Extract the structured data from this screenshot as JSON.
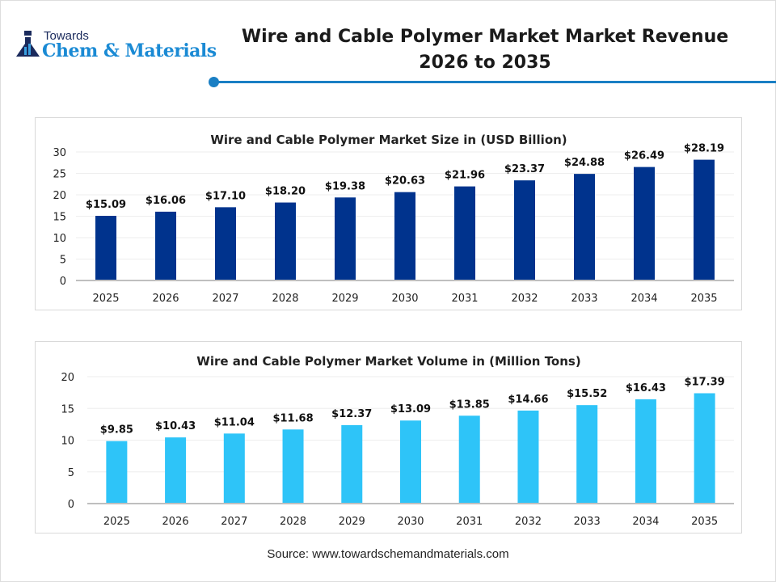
{
  "header": {
    "logo": {
      "line1": "Towards",
      "line2": "Chem & Materials"
    },
    "title_line1": "Wire and Cable Polymer Market Market Revenue",
    "title_line2": "2026 to 2035",
    "accent_color": "#1a7fc4"
  },
  "chart_data": [
    {
      "type": "bar",
      "title": "Wire and Cable Polymer Market Size in (USD Billion)",
      "categories": [
        "2025",
        "2026",
        "2027",
        "2028",
        "2029",
        "2030",
        "2031",
        "2032",
        "2033",
        "2034",
        "2035"
      ],
      "values": [
        15.09,
        16.06,
        17.1,
        18.2,
        19.38,
        20.63,
        21.96,
        23.37,
        24.88,
        26.49,
        28.19
      ],
      "data_labels": [
        "$15.09",
        "$16.06",
        "$17.10",
        "$18.20",
        "$19.38",
        "$20.63",
        "$21.96",
        "$23.37",
        "$24.88",
        "$26.49",
        "$28.19"
      ],
      "ylim": [
        0,
        30
      ],
      "yticks": [
        0,
        5,
        10,
        15,
        20,
        25,
        30
      ],
      "grid": true,
      "color": "#00338d"
    },
    {
      "type": "bar",
      "title": "Wire and Cable Polymer Market Volume in (Million Tons)",
      "categories": [
        "2025",
        "2026",
        "2027",
        "2028",
        "2029",
        "2030",
        "2031",
        "2032",
        "2033",
        "2034",
        "2035"
      ],
      "values": [
        9.85,
        10.43,
        11.04,
        11.68,
        12.37,
        13.09,
        13.85,
        14.66,
        15.52,
        16.43,
        17.39
      ],
      "data_labels": [
        "$9.85",
        "$10.43",
        "$11.04",
        "$11.68",
        "$12.37",
        "$13.09",
        "$13.85",
        "$14.66",
        "$15.52",
        "$16.43",
        "$17.39"
      ],
      "ylim": [
        0,
        20
      ],
      "yticks": [
        0,
        5,
        10,
        15,
        20
      ],
      "grid": true,
      "color": "#2ec4f8"
    }
  ],
  "footer": {
    "source": "Source: www.towardschemandmaterials.com"
  }
}
